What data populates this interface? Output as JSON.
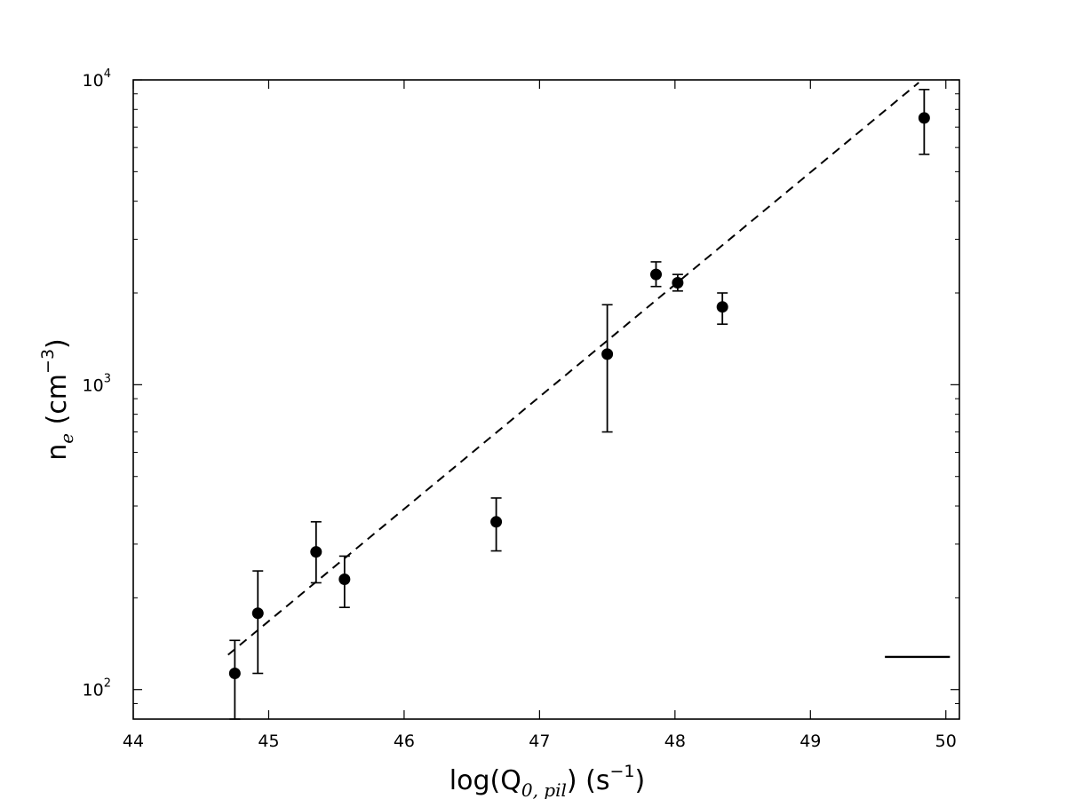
{
  "chart_data": {
    "type": "scatter",
    "title": "",
    "xlabel": {
      "prefix": "log(Q",
      "subscript": "0, pil",
      "suffix": ") (s",
      "superscript": "−1",
      "close": ")"
    },
    "ylabel": {
      "prefix": "n",
      "subscript": "e",
      "mid": " (cm",
      "superscript": "−3",
      "close": ")"
    },
    "xlim": [
      44,
      50.1
    ],
    "ylim": [
      80,
      10000
    ],
    "yscale": "log",
    "xticks": [
      "44",
      "45",
      "46",
      "47",
      "48",
      "49",
      "50"
    ],
    "yticks": [
      {
        "value": 100,
        "base": "10",
        "exp": "2"
      },
      {
        "value": 1000,
        "base": "10",
        "exp": "3"
      },
      {
        "value": 10000,
        "base": "10",
        "exp": "4"
      }
    ],
    "points": [
      {
        "x": 44.75,
        "y": 113,
        "ylow": 80,
        "yhigh": 145
      },
      {
        "x": 44.92,
        "y": 178,
        "ylow": 113,
        "yhigh": 245
      },
      {
        "x": 45.35,
        "y": 283,
        "ylow": 224,
        "yhigh": 355
      },
      {
        "x": 45.56,
        "y": 230,
        "ylow": 186,
        "yhigh": 274
      },
      {
        "x": 46.68,
        "y": 355,
        "ylow": 285,
        "yhigh": 425
      },
      {
        "x": 47.5,
        "y": 1260,
        "ylow": 700,
        "yhigh": 1830
      },
      {
        "x": 47.86,
        "y": 2300,
        "ylow": 2100,
        "yhigh": 2530
      },
      {
        "x": 48.02,
        "y": 2160,
        "ylow": 2030,
        "yhigh": 2300
      },
      {
        "x": 48.35,
        "y": 1800,
        "ylow": 1580,
        "yhigh": 2000
      },
      {
        "x": 49.84,
        "y": 7500,
        "ylow": 5700,
        "yhigh": 9300
      }
    ],
    "fit_line": {
      "style": "dashed",
      "x": [
        44.7,
        49.8
      ],
      "y": [
        130,
        9800
      ]
    },
    "reference_bar": {
      "x": [
        49.55,
        50.03
      ],
      "y": 128
    },
    "grid": false,
    "legend": "none"
  }
}
